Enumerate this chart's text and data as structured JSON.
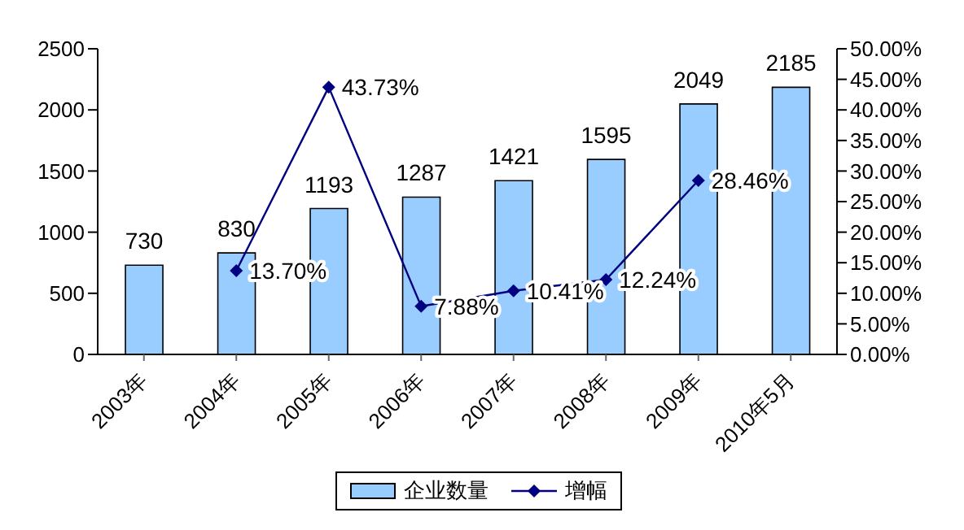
{
  "chart_data": {
    "type": "bar",
    "categories": [
      "2003年",
      "2004年",
      "2005年",
      "2006年",
      "2007年",
      "2008年",
      "2009年",
      "2010年5月"
    ],
    "series": [
      {
        "name": "企业数量",
        "color": "#99ccff",
        "values": [
          730,
          830,
          1193,
          1287,
          1421,
          1595,
          2049,
          2185
        ],
        "value_labels": [
          "730",
          "830",
          "1193",
          "1287",
          "1421",
          "1595",
          "2049",
          "2185"
        ]
      },
      {
        "name": "增幅",
        "type": "line",
        "axis": "y2",
        "color": "#000080",
        "marker": "diamond",
        "values": [
          null,
          13.7,
          43.73,
          7.88,
          10.41,
          12.24,
          28.46,
          null
        ],
        "value_labels": [
          null,
          "13.70%",
          "43.73%",
          "7.88%",
          "10.41%",
          "12.24%",
          "28.46%",
          null
        ]
      }
    ],
    "ylim": [
      0,
      2500
    ],
    "yticks": [
      0,
      500,
      1000,
      1500,
      2000,
      2500
    ],
    "y2lim": [
      0,
      50
    ],
    "y2ticks": [
      {
        "value": 0,
        "label": "0.00%"
      },
      {
        "value": 5,
        "label": "5.00%"
      },
      {
        "value": 10,
        "label": "10.00%"
      },
      {
        "value": 15,
        "label": "15.00%"
      },
      {
        "value": 20,
        "label": "20.00%"
      },
      {
        "value": 25,
        "label": "25.00%"
      },
      {
        "value": 30,
        "label": "30.00%"
      },
      {
        "value": 35,
        "label": "35.00%"
      },
      {
        "value": 40,
        "label": "40.00%"
      },
      {
        "value": 45,
        "label": "45.00%"
      },
      {
        "value": 50,
        "label": "50.00%"
      }
    ],
    "grid": false,
    "legend": "bottom"
  }
}
